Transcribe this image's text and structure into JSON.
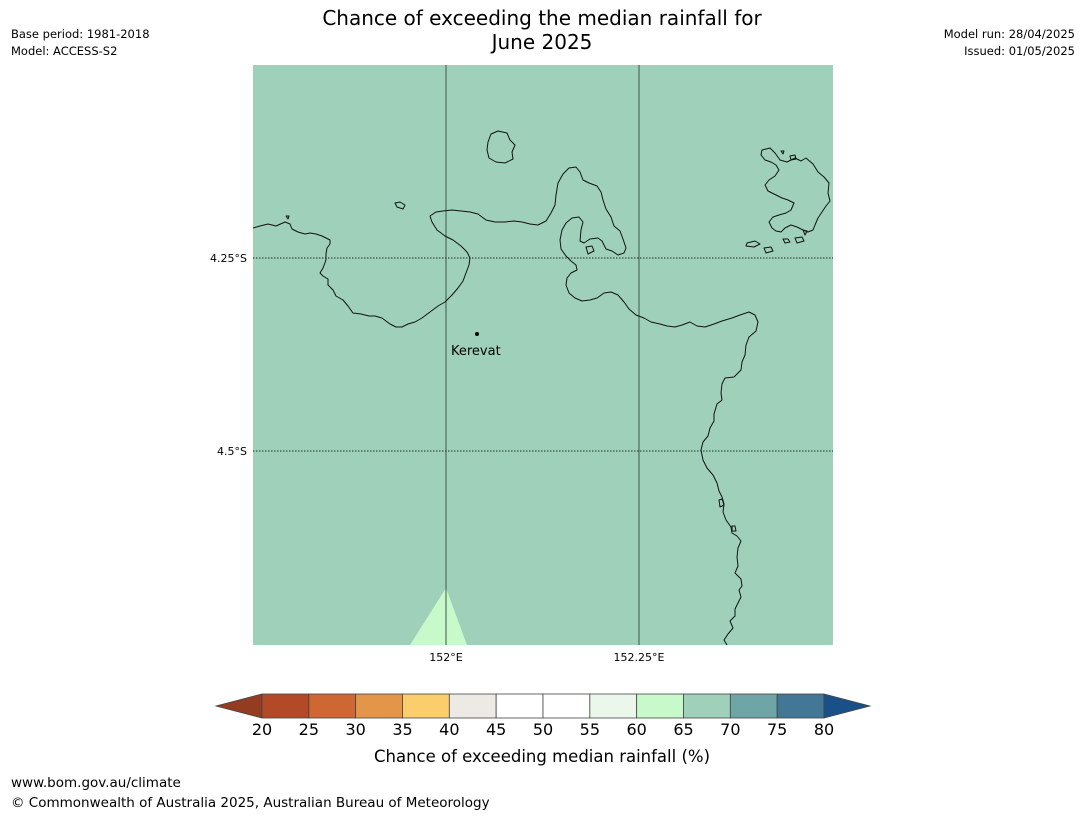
{
  "title_line1": "Chance of exceeding the median rainfall for",
  "title_line2": "June 2025",
  "meta_left": {
    "base_period": "Base period: 1981-2018",
    "model": "Model: ACCESS-S2"
  },
  "meta_right": {
    "model_run": "Model run: 28/04/2025",
    "issued": "Issued: 01/05/2025"
  },
  "map": {
    "ocean_color": "#9ed0ba",
    "highlight_color": "#c8f9cb",
    "lat_labels": [
      "4.25°S",
      "4.5°S"
    ],
    "lon_labels": [
      "152°E",
      "152.25°E"
    ],
    "place_name": "Kerevat"
  },
  "colorbar": {
    "ticks": [
      "20",
      "25",
      "30",
      "35",
      "40",
      "45",
      "50",
      "55",
      "60",
      "65",
      "70",
      "75",
      "80"
    ],
    "colors": [
      "#b34a27",
      "#cf6733",
      "#e3954a",
      "#fbcd6c",
      "#ede9e4",
      "#ffffff",
      "#ffffff",
      "#eaf7ea",
      "#c8f9cb",
      "#9ed0ba",
      "#6ea6a8",
      "#427896"
    ],
    "low_extend_color": "#943c22",
    "high_extend_color": "#195088",
    "label": "Chance of exceeding median rainfall (%)"
  },
  "footer": {
    "url": "www.bom.gov.au/climate",
    "copyright": "© Commonwealth of Australia 2025, Australian Bureau of Meteorology"
  }
}
